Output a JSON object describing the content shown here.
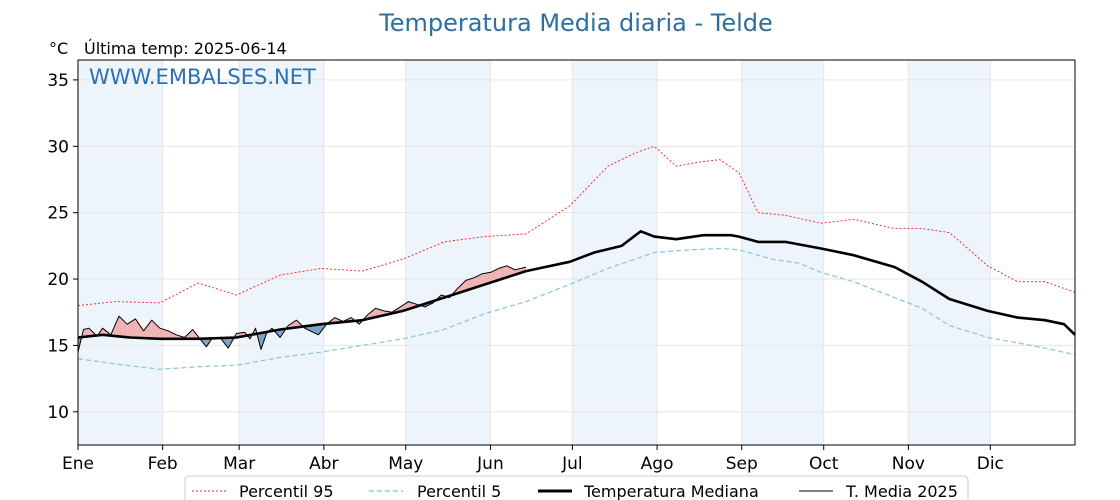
{
  "chart_data": {
    "type": "line",
    "title": "Temperatura Media diaria - Telde",
    "unit_label": "°C",
    "last_temp_label": "Última temp: 2025-06-14",
    "watermark": "WWW.EMBALSES.NET",
    "ylim": [
      7.5,
      36.5
    ],
    "yticks": [
      10,
      15,
      20,
      25,
      30,
      35
    ],
    "xlim": [
      1,
      366
    ],
    "months": [
      {
        "label": "Ene",
        "start": 1
      },
      {
        "label": "Feb",
        "start": 32
      },
      {
        "label": "Mar",
        "start": 60
      },
      {
        "label": "Abr",
        "start": 91
      },
      {
        "label": "May",
        "start": 121
      },
      {
        "label": "Jun",
        "start": 152
      },
      {
        "label": "Jul",
        "start": 182
      },
      {
        "label": "Ago",
        "start": 213
      },
      {
        "label": "Sep",
        "start": 244
      },
      {
        "label": "Oct",
        "start": 274
      },
      {
        "label": "Nov",
        "start": 305
      },
      {
        "label": "Dic",
        "start": 335
      }
    ],
    "legend_position": "bottom-center",
    "colors": {
      "p95": "#e8231d",
      "p5": "#8ec9dd",
      "median": "#000000",
      "current": "#000000",
      "above_fill": "#f0b3b3",
      "below_fill": "#7aa3c7",
      "band_shade": "#eef4fb"
    },
    "series": [
      {
        "key": "p95",
        "name": "Percentil 95",
        "points": [
          [
            1,
            18.0
          ],
          [
            15,
            18.3
          ],
          [
            31,
            18.2
          ],
          [
            45,
            19.7
          ],
          [
            59,
            18.8
          ],
          [
            75,
            20.3
          ],
          [
            90,
            20.8
          ],
          [
            105,
            20.6
          ],
          [
            120,
            21.5
          ],
          [
            135,
            22.8
          ],
          [
            150,
            23.2
          ],
          [
            165,
            23.4
          ],
          [
            181,
            25.5
          ],
          [
            195,
            28.5
          ],
          [
            205,
            29.5
          ],
          [
            212,
            30.0
          ],
          [
            220,
            28.5
          ],
          [
            228,
            28.8
          ],
          [
            236,
            29.0
          ],
          [
            243,
            28.0
          ],
          [
            250,
            25.0
          ],
          [
            260,
            24.8
          ],
          [
            273,
            24.2
          ],
          [
            285,
            24.5
          ],
          [
            300,
            23.8
          ],
          [
            310,
            23.8
          ],
          [
            320,
            23.5
          ],
          [
            334,
            21.0
          ],
          [
            345,
            19.8
          ],
          [
            355,
            19.8
          ],
          [
            366,
            19.0
          ]
        ]
      },
      {
        "key": "p5",
        "name": "Percentil 5",
        "points": [
          [
            1,
            14.0
          ],
          [
            15,
            13.6
          ],
          [
            31,
            13.2
          ],
          [
            45,
            13.4
          ],
          [
            59,
            13.5
          ],
          [
            75,
            14.1
          ],
          [
            90,
            14.5
          ],
          [
            105,
            15.0
          ],
          [
            120,
            15.5
          ],
          [
            135,
            16.2
          ],
          [
            150,
            17.4
          ],
          [
            165,
            18.3
          ],
          [
            181,
            19.6
          ],
          [
            195,
            20.8
          ],
          [
            205,
            21.5
          ],
          [
            212,
            22.0
          ],
          [
            225,
            22.2
          ],
          [
            236,
            22.3
          ],
          [
            243,
            22.2
          ],
          [
            255,
            21.5
          ],
          [
            265,
            21.2
          ],
          [
            273,
            20.5
          ],
          [
            285,
            19.8
          ],
          [
            300,
            18.6
          ],
          [
            310,
            17.8
          ],
          [
            320,
            16.5
          ],
          [
            334,
            15.6
          ],
          [
            345,
            15.2
          ],
          [
            355,
            14.8
          ],
          [
            366,
            14.3
          ]
        ]
      },
      {
        "key": "median",
        "name": "Temperatura Mediana",
        "points": [
          [
            1,
            15.6
          ],
          [
            10,
            15.8
          ],
          [
            20,
            15.6
          ],
          [
            31,
            15.5
          ],
          [
            45,
            15.5
          ],
          [
            59,
            15.6
          ],
          [
            75,
            16.2
          ],
          [
            90,
            16.6
          ],
          [
            105,
            16.9
          ],
          [
            120,
            17.6
          ],
          [
            135,
            18.6
          ],
          [
            150,
            19.6
          ],
          [
            165,
            20.6
          ],
          [
            181,
            21.3
          ],
          [
            190,
            22.0
          ],
          [
            200,
            22.5
          ],
          [
            207,
            23.6
          ],
          [
            212,
            23.2
          ],
          [
            220,
            23.0
          ],
          [
            230,
            23.3
          ],
          [
            240,
            23.3
          ],
          [
            243,
            23.2
          ],
          [
            250,
            22.8
          ],
          [
            260,
            22.8
          ],
          [
            273,
            22.3
          ],
          [
            285,
            21.8
          ],
          [
            300,
            20.9
          ],
          [
            310,
            19.8
          ],
          [
            320,
            18.5
          ],
          [
            334,
            17.6
          ],
          [
            345,
            17.1
          ],
          [
            355,
            16.9
          ],
          [
            362,
            16.6
          ],
          [
            366,
            15.8
          ]
        ]
      },
      {
        "key": "current",
        "name": "T. Media 2025",
        "points": [
          [
            1,
            14.5
          ],
          [
            3,
            16.2
          ],
          [
            5,
            16.3
          ],
          [
            8,
            15.7
          ],
          [
            10,
            16.3
          ],
          [
            13,
            15.8
          ],
          [
            16,
            17.2
          ],
          [
            19,
            16.6
          ],
          [
            22,
            17.0
          ],
          [
            25,
            16.1
          ],
          [
            28,
            16.9
          ],
          [
            31,
            16.3
          ],
          [
            34,
            16.1
          ],
          [
            37,
            15.8
          ],
          [
            40,
            15.6
          ],
          [
            43,
            16.2
          ],
          [
            46,
            15.4
          ],
          [
            48,
            14.9
          ],
          [
            50,
            15.5
          ],
          [
            53,
            15.6
          ],
          [
            56,
            14.8
          ],
          [
            59,
            15.9
          ],
          [
            62,
            16.0
          ],
          [
            64,
            15.5
          ],
          [
            66,
            16.3
          ],
          [
            68,
            14.7
          ],
          [
            70,
            15.9
          ],
          [
            72,
            16.3
          ],
          [
            75,
            15.6
          ],
          [
            78,
            16.5
          ],
          [
            81,
            16.9
          ],
          [
            84,
            16.3
          ],
          [
            87,
            16.0
          ],
          [
            89,
            15.8
          ],
          [
            92,
            16.6
          ],
          [
            95,
            17.1
          ],
          [
            98,
            16.8
          ],
          [
            101,
            17.1
          ],
          [
            104,
            16.6
          ],
          [
            107,
            17.3
          ],
          [
            110,
            17.8
          ],
          [
            113,
            17.6
          ],
          [
            116,
            17.5
          ],
          [
            119,
            17.9
          ],
          [
            122,
            18.3
          ],
          [
            125,
            18.1
          ],
          [
            128,
            17.9
          ],
          [
            131,
            18.2
          ],
          [
            134,
            18.8
          ],
          [
            137,
            18.6
          ],
          [
            140,
            19.3
          ],
          [
            143,
            19.9
          ],
          [
            146,
            20.1
          ],
          [
            149,
            20.4
          ],
          [
            152,
            20.5
          ],
          [
            155,
            20.8
          ],
          [
            158,
            21.0
          ],
          [
            161,
            20.7
          ],
          [
            165,
            20.9
          ]
        ]
      }
    ]
  }
}
